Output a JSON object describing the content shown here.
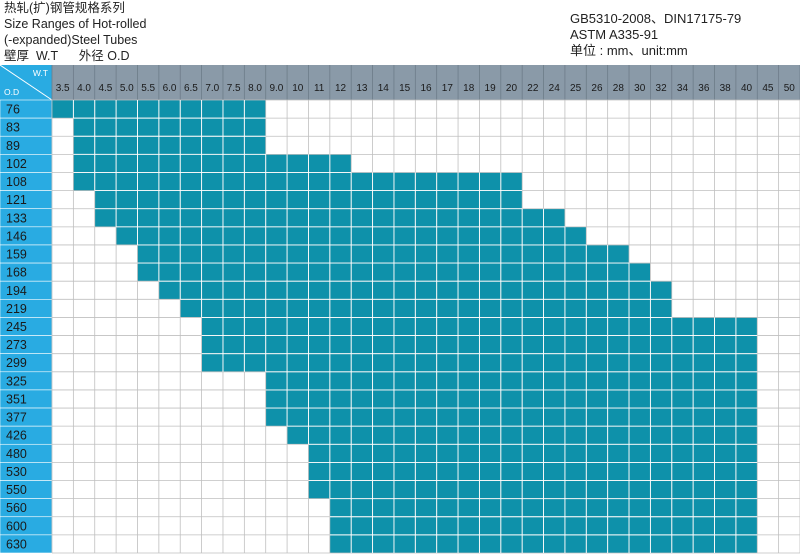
{
  "header": {
    "title_cn": "热轧(扩)钢管规格系列",
    "title_en_1": "Size Ranges of Hot-rolled",
    "title_en_2": "(-expanded)Steel Tubes",
    "axis_legend": "壁厚  W.T      外径 O.D",
    "standard_1": "GB5310-2008、DIN17175-79",
    "standard_2": "ASTM A335-91",
    "unit": "单位 : mm、unit:mm"
  },
  "colors": {
    "header_bg": "#8a9aa8",
    "od_bg": "#29abe2",
    "fill": "#0e91aa",
    "grid": "#bfbfbf",
    "fill_grid": "#ffffff"
  },
  "chart_data": {
    "type": "table",
    "corner_labels": {
      "x": "W.T",
      "y": "O.D"
    },
    "wall_thickness": [
      "3.5",
      "4.0",
      "4.5",
      "5.0",
      "5.5",
      "6.0",
      "6.5",
      "7.0",
      "7.5",
      "8.0",
      "9.0",
      "10",
      "11",
      "12",
      "13",
      "14",
      "15",
      "16",
      "17",
      "18",
      "19",
      "20",
      "22",
      "24",
      "25",
      "26",
      "28",
      "30",
      "32",
      "34",
      "36",
      "38",
      "40",
      "45",
      "50"
    ],
    "outer_diameter": [
      "76",
      "83",
      "89",
      "102",
      "108",
      "121",
      "133",
      "146",
      "159",
      "168",
      "194",
      "219",
      "245",
      "273",
      "299",
      "325",
      "351",
      "377",
      "426",
      "480",
      "530",
      "550",
      "560",
      "600",
      "630"
    ],
    "ranges": [
      {
        "od": "76",
        "wt_min": "3.5",
        "wt_max": "8.0"
      },
      {
        "od": "83",
        "wt_min": "4.0",
        "wt_max": "8.0"
      },
      {
        "od": "89",
        "wt_min": "4.0",
        "wt_max": "8.0"
      },
      {
        "od": "102",
        "wt_min": "4.0",
        "wt_max": "12"
      },
      {
        "od": "108",
        "wt_min": "4.0",
        "wt_max": "20"
      },
      {
        "od": "121",
        "wt_min": "4.5",
        "wt_max": "20"
      },
      {
        "od": "133",
        "wt_min": "4.5",
        "wt_max": "24"
      },
      {
        "od": "146",
        "wt_min": "5.0",
        "wt_max": "25"
      },
      {
        "od": "159",
        "wt_min": "5.5",
        "wt_max": "28"
      },
      {
        "od": "168",
        "wt_min": "5.5",
        "wt_max": "30"
      },
      {
        "od": "194",
        "wt_min": "6.0",
        "wt_max": "32"
      },
      {
        "od": "219",
        "wt_min": "6.5",
        "wt_max": "32"
      },
      {
        "od": "245",
        "wt_min": "7.0",
        "wt_max": "40"
      },
      {
        "od": "273",
        "wt_min": "7.0",
        "wt_max": "40"
      },
      {
        "od": "299",
        "wt_min": "7.0",
        "wt_max": "40"
      },
      {
        "od": "325",
        "wt_min": "9.0",
        "wt_max": "40"
      },
      {
        "od": "351",
        "wt_min": "9.0",
        "wt_max": "40"
      },
      {
        "od": "377",
        "wt_min": "9.0",
        "wt_max": "40"
      },
      {
        "od": "426",
        "wt_min": "10",
        "wt_max": "40"
      },
      {
        "od": "480",
        "wt_min": "11",
        "wt_max": "40"
      },
      {
        "od": "530",
        "wt_min": "11",
        "wt_max": "40"
      },
      {
        "od": "550",
        "wt_min": "11",
        "wt_max": "40"
      },
      {
        "od": "560",
        "wt_min": "12",
        "wt_max": "40"
      },
      {
        "od": "600",
        "wt_min": "12",
        "wt_max": "40"
      },
      {
        "od": "630",
        "wt_min": "12",
        "wt_max": "40"
      }
    ]
  }
}
